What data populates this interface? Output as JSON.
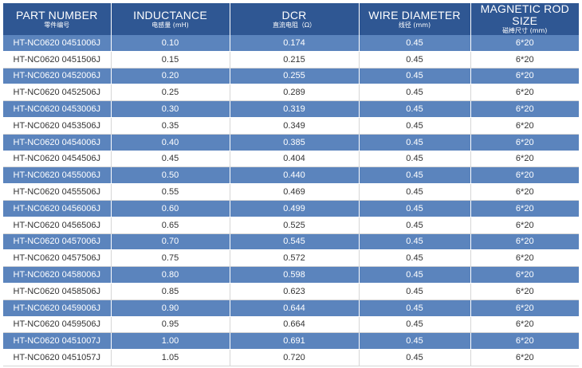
{
  "headers": [
    {
      "title": "PART NUMBER",
      "sub": "零件编号"
    },
    {
      "title": "INDUCTANCE",
      "sub": "电感量 (mH)"
    },
    {
      "title": "DCR",
      "sub": "直流电阻（Ω）"
    },
    {
      "title": "WIRE DIAMETER",
      "sub": "线径 (mm)"
    },
    {
      "title": "MAGNETIC ROD SIZE",
      "sub": "磁棒尺寸 (mm)"
    }
  ],
  "rows": [
    [
      "HT-NC0620 0451006J",
      "0.10",
      "0.174",
      "0.45",
      "6*20"
    ],
    [
      "HT-NC0620 0451506J",
      "0.15",
      "0.215",
      "0.45",
      "6*20"
    ],
    [
      "HT-NC0620 0452006J",
      "0.20",
      "0.255",
      "0.45",
      "6*20"
    ],
    [
      "HT-NC0620 0452506J",
      "0.25",
      "0.289",
      "0.45",
      "6*20"
    ],
    [
      "HT-NC0620 0453006J",
      "0.30",
      "0.319",
      "0.45",
      "6*20"
    ],
    [
      "HT-NC0620 0453506J",
      "0.35",
      "0.349",
      "0.45",
      "6*20"
    ],
    [
      "HT-NC0620 0454006J",
      "0.40",
      "0.385",
      "0.45",
      "6*20"
    ],
    [
      "HT-NC0620 0454506J",
      "0.45",
      "0.404",
      "0.45",
      "6*20"
    ],
    [
      "HT-NC0620 0455006J",
      "0.50",
      "0.440",
      "0.45",
      "6*20"
    ],
    [
      "HT-NC0620 0455506J",
      "0.55",
      "0.469",
      "0.45",
      "6*20"
    ],
    [
      "HT-NC0620 0456006J",
      "0.60",
      "0.499",
      "0.45",
      "6*20"
    ],
    [
      "HT-NC0620 0456506J",
      "0.65",
      "0.525",
      "0.45",
      "6*20"
    ],
    [
      "HT-NC0620 0457006J",
      "0.70",
      "0.545",
      "0.45",
      "6*20"
    ],
    [
      "HT-NC0620 0457506J",
      "0.75",
      "0.572",
      "0.45",
      "6*20"
    ],
    [
      "HT-NC0620 0458006J",
      "0.80",
      "0.598",
      "0.45",
      "6*20"
    ],
    [
      "HT-NC0620 0458506J",
      "0.85",
      "0.623",
      "0.45",
      "6*20"
    ],
    [
      "HT-NC0620 0459006J",
      "0.90",
      "0.644",
      "0.45",
      "6*20"
    ],
    [
      "HT-NC0620 0459506J",
      "0.95",
      "0.664",
      "0.45",
      "6*20"
    ],
    [
      "HT-NC0620 0451007J",
      "1.00",
      "0.691",
      "0.45",
      "6*20"
    ],
    [
      "HT-NC0620 0451057J",
      "1.05",
      "0.720",
      "0.45",
      "6*20"
    ]
  ]
}
